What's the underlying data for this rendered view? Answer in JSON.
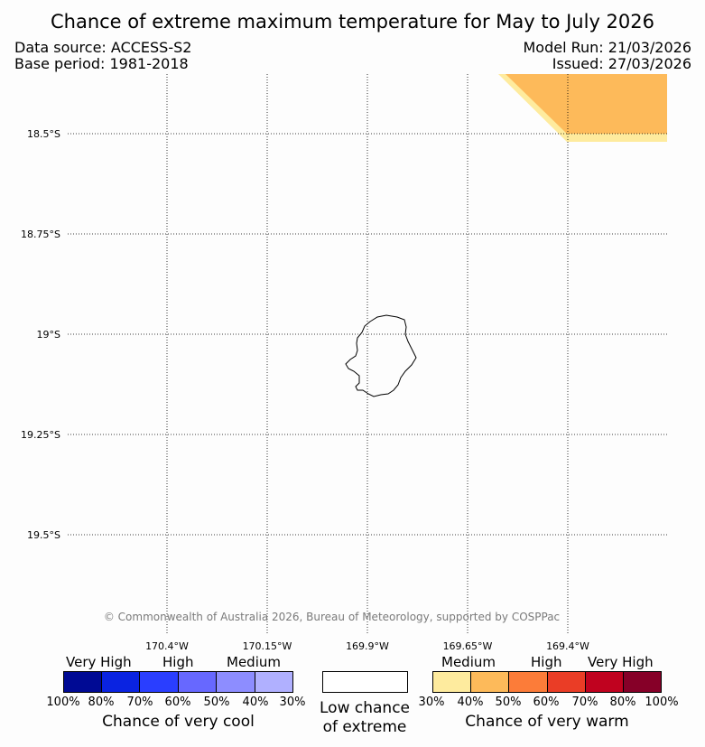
{
  "header": {
    "title": "Chance of extreme maximum temperature for May to July 2026",
    "data_source": "Data source: ACCESS-S2",
    "base_period": "Base period: 1981-2018",
    "model_run": "Model Run: 21/03/2026",
    "issued": "Issued: 27/03/2026"
  },
  "map": {
    "latitude_labels": [
      "18.5°S",
      "18.75°S",
      "19°S",
      "19.25°S",
      "19.5°S"
    ],
    "longitude_labels": [
      "170.4°W",
      "170.15°W",
      "169.9°W",
      "169.65°W",
      "169.4°W"
    ],
    "copyright": "© Commonwealth of Australia 2026, Bureau of Meteorology, supported by COSPPac",
    "shaded_region": {
      "category": "Medium (40-50%) chance of very warm",
      "color": "#fdba5a",
      "edge_color": "#feeb9e"
    }
  },
  "legend": {
    "cool": {
      "categories": [
        "Very High",
        "High",
        "Medium"
      ],
      "ticks": [
        "100%",
        "80%",
        "70%",
        "60%",
        "50%",
        "40%",
        "30%"
      ],
      "colors": [
        "#000a94",
        "#0a23e1",
        "#2a3eff",
        "#6768ff",
        "#8d8dff",
        "#b0b0ff"
      ],
      "title": "Chance of very cool"
    },
    "neutral": {
      "line1": "Low chance",
      "line2": "of extreme",
      "color": "#ffffff"
    },
    "warm": {
      "categories": [
        "Medium",
        "High",
        "Very High"
      ],
      "ticks": [
        "30%",
        "40%",
        "50%",
        "60%",
        "70%",
        "80%",
        "100%"
      ],
      "colors": [
        "#feeb9e",
        "#fdba5a",
        "#fc7c39",
        "#ea3d26",
        "#c0021f",
        "#860028"
      ],
      "title": "Chance of very warm"
    }
  }
}
